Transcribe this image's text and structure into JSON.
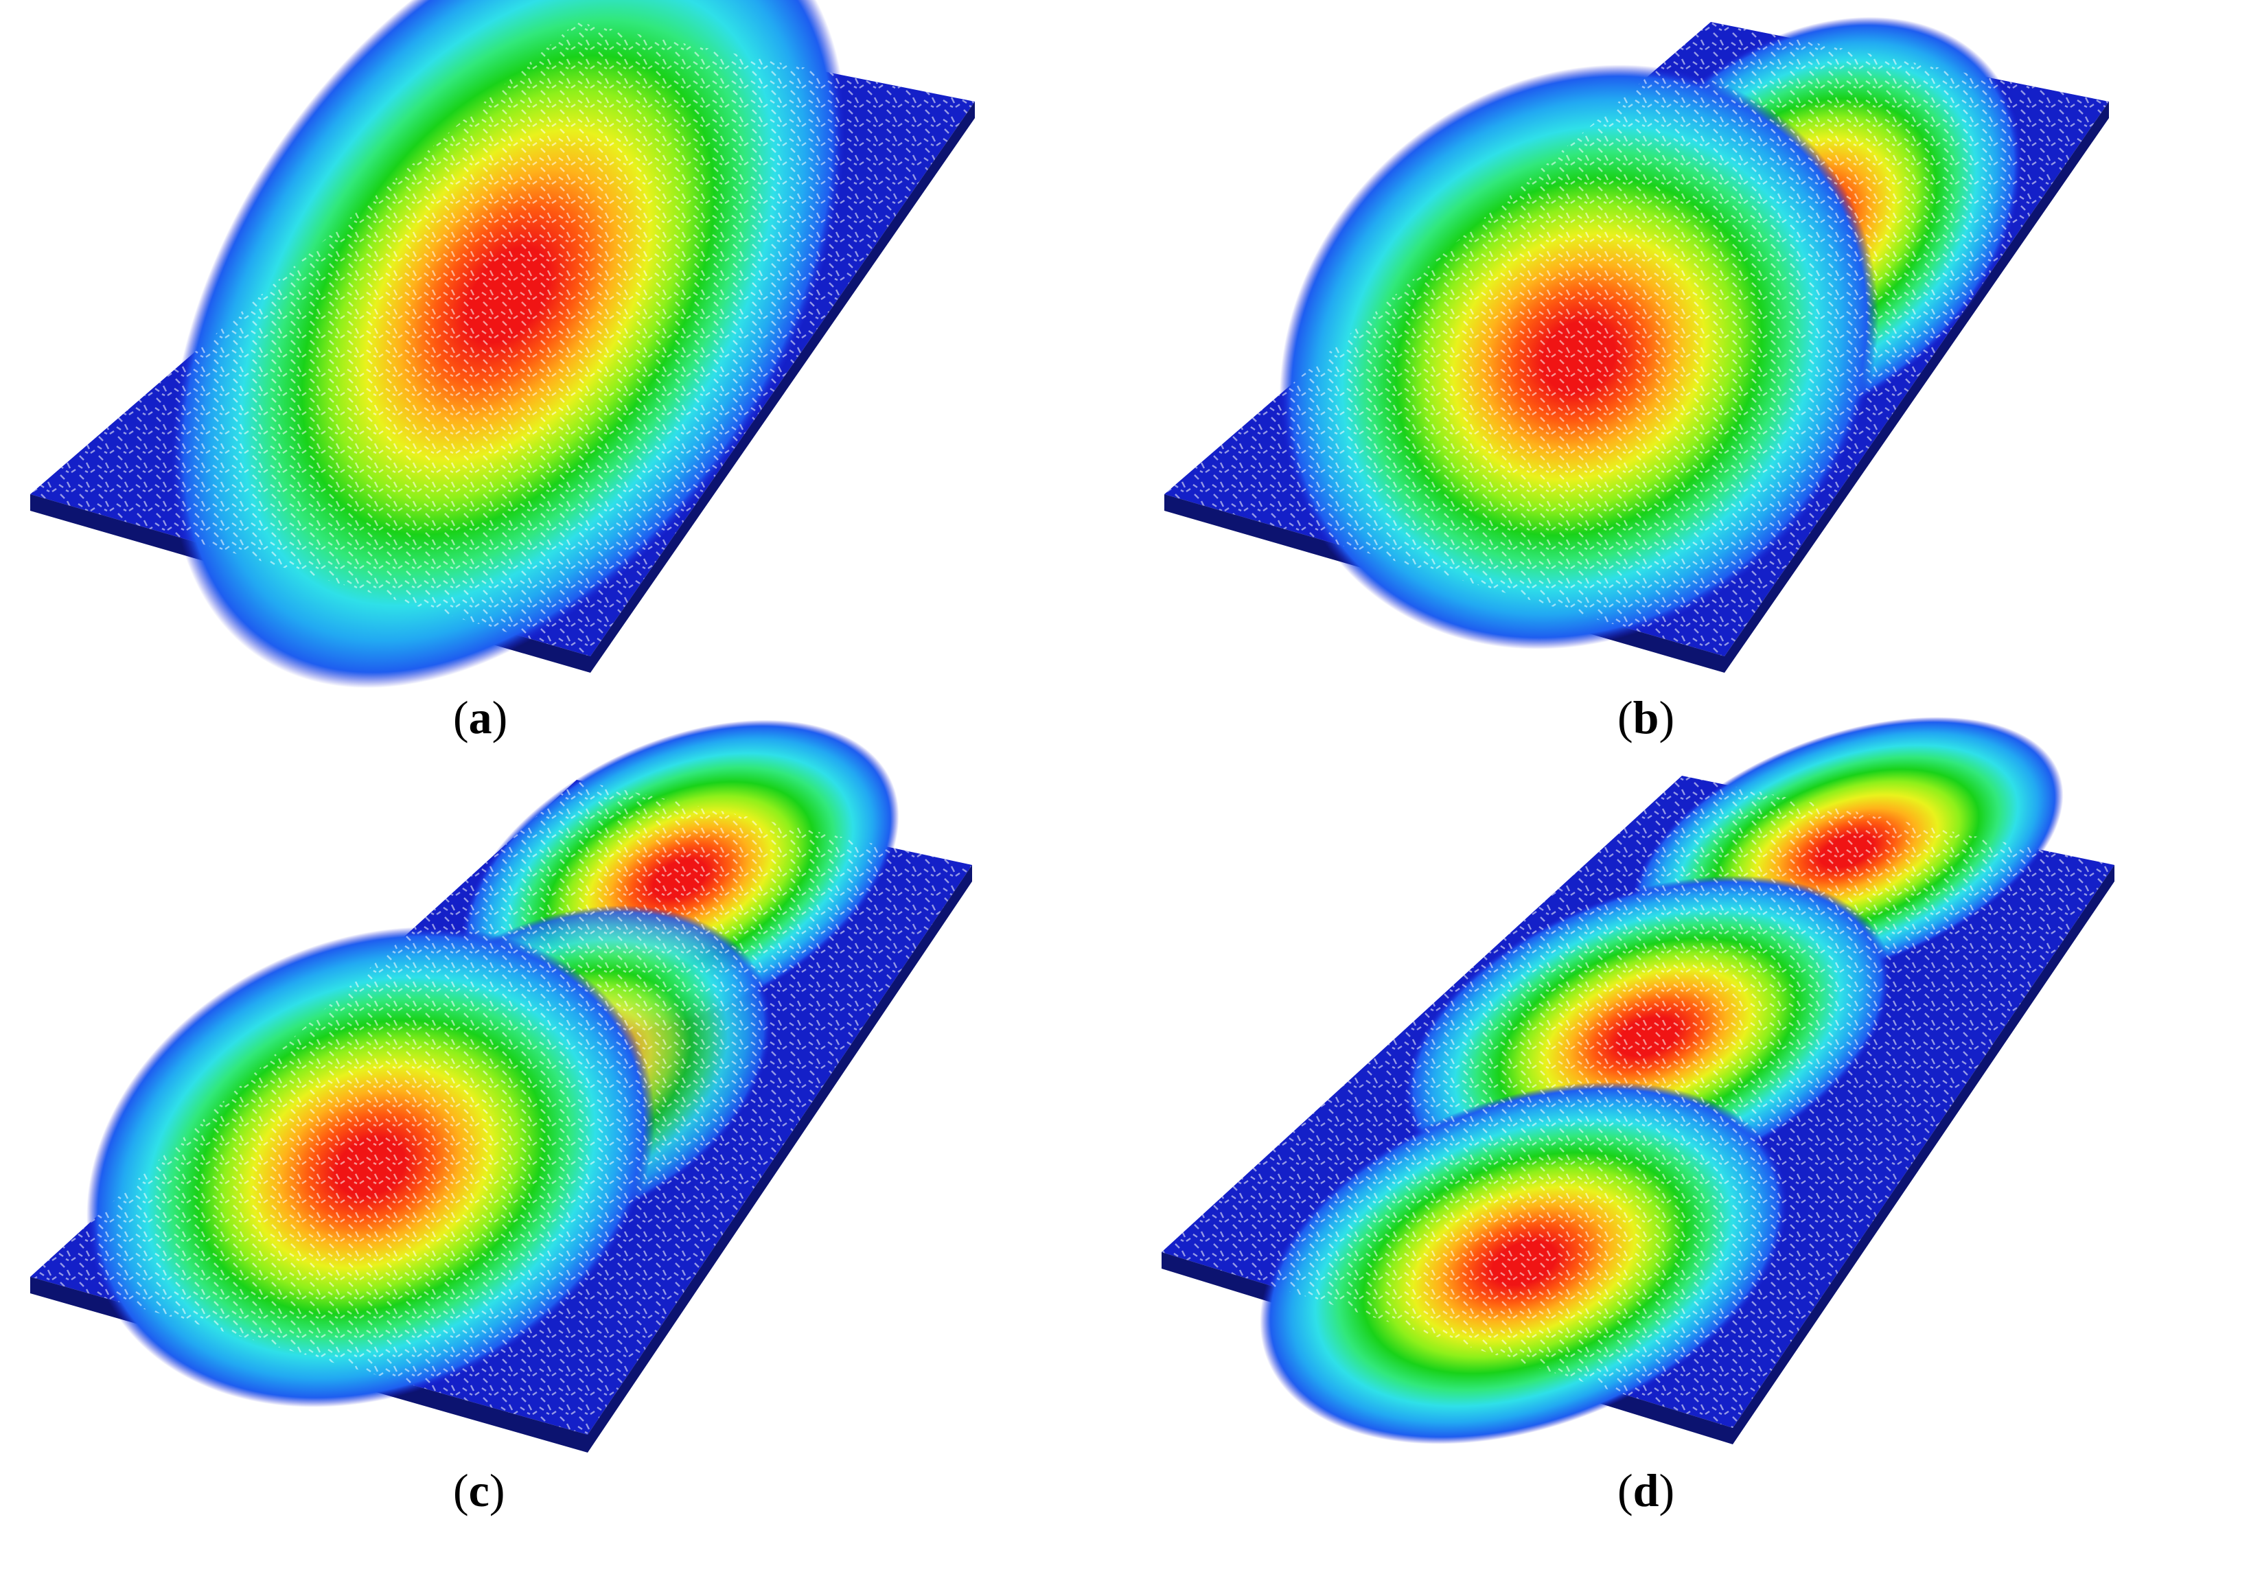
{
  "figure": {
    "panels": [
      {
        "id": "a",
        "caption_open": "(",
        "caption_letter": "a",
        "caption_close": ")"
      },
      {
        "id": "b",
        "caption_open": "(",
        "caption_letter": "b",
        "caption_close": ")"
      },
      {
        "id": "c",
        "caption_open": "(",
        "caption_letter": "c",
        "caption_close": ")"
      },
      {
        "id": "d",
        "caption_open": "(",
        "caption_letter": "d",
        "caption_close": ")"
      }
    ],
    "colormap": [
      "#1a1fd6",
      "#1e5ef0",
      "#22a9f2",
      "#2fe0e8",
      "#31e87a",
      "#19d219",
      "#8ef01a",
      "#e9f21c",
      "#ffb21a",
      "#ff5a10",
      "#f01414"
    ],
    "plate_color": "#1420c8"
  }
}
